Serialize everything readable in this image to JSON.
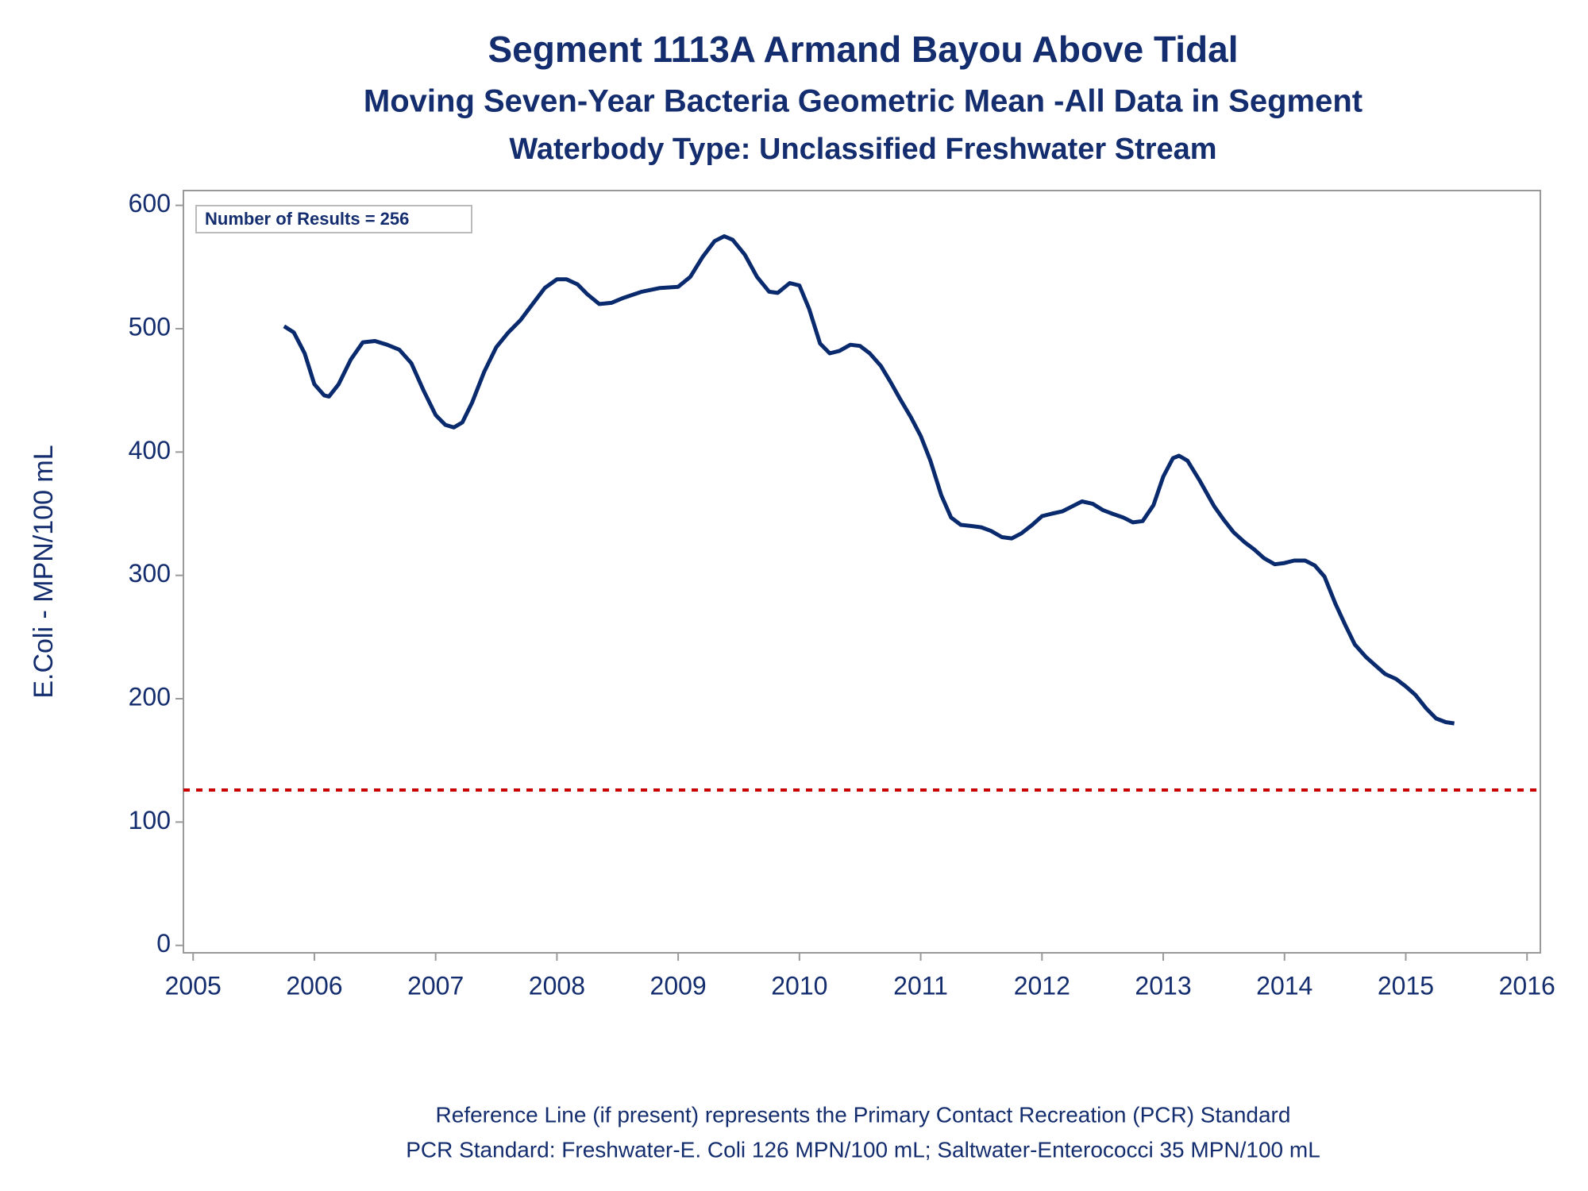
{
  "chart_data": {
    "type": "line",
    "title": "Segment 1113A   Armand Bayou Above Tidal",
    "subtitle": "Moving Seven-Year Bacteria Geometric Mean -All Data in Segment",
    "subtitle2": "Waterbody Type: Unclassified Freshwater Stream",
    "y_label": "E.Coli - MPN/100 mL",
    "annotation": "Number of Results = 256",
    "footnotes": [
      "Reference Line (if present) represents the Primary Contact Recreation (PCR) Standard",
      "PCR Standard: Freshwater-E. Coli 126 MPN/100 mL; Saltwater-Enterococci 35 MPN/100 mL"
    ],
    "x": [
      2005.75,
      2005.83,
      2005.92,
      2006.0,
      2006.08,
      2006.12,
      2006.2,
      2006.3,
      2006.4,
      2006.5,
      2006.6,
      2006.7,
      2006.8,
      2006.9,
      2007.0,
      2007.08,
      2007.15,
      2007.22,
      2007.3,
      2007.4,
      2007.5,
      2007.6,
      2007.7,
      2007.8,
      2007.9,
      2008.0,
      2008.08,
      2008.17,
      2008.25,
      2008.35,
      2008.45,
      2008.55,
      2008.7,
      2008.85,
      2009.0,
      2009.1,
      2009.2,
      2009.3,
      2009.38,
      2009.45,
      2009.55,
      2009.65,
      2009.75,
      2009.82,
      2009.92,
      2010.0,
      2010.08,
      2010.17,
      2010.25,
      2010.33,
      2010.42,
      2010.5,
      2010.58,
      2010.67,
      2010.75,
      2010.83,
      2010.92,
      2011.0,
      2011.08,
      2011.17,
      2011.25,
      2011.33,
      2011.42,
      2011.5,
      2011.58,
      2011.67,
      2011.75,
      2011.83,
      2011.92,
      2012.0,
      2012.08,
      2012.17,
      2012.25,
      2012.33,
      2012.42,
      2012.5,
      2012.58,
      2012.67,
      2012.75,
      2012.83,
      2012.92,
      2013.0,
      2013.08,
      2013.13,
      2013.2,
      2013.3,
      2013.42,
      2013.5,
      2013.58,
      2013.67,
      2013.75,
      2013.83,
      2013.92,
      2014.0,
      2014.08,
      2014.17,
      2014.25,
      2014.33,
      2014.42,
      2014.5,
      2014.58,
      2014.67,
      2014.75,
      2014.83,
      2014.92,
      2015.0,
      2015.08,
      2015.17,
      2015.25,
      2015.33,
      2015.4
    ],
    "series": [
      {
        "name": "Geometric Mean",
        "color": "#0a2a6e",
        "values": [
          502,
          497,
          480,
          455,
          446,
          445,
          455,
          475,
          489,
          490,
          487,
          483,
          472,
          450,
          430,
          422,
          420,
          424,
          440,
          465,
          485,
          497,
          507,
          520,
          533,
          540,
          540,
          536,
          528,
          520,
          521,
          525,
          530,
          533,
          534,
          542,
          558,
          571,
          575,
          572,
          560,
          542,
          530,
          529,
          537,
          535,
          516,
          488,
          480,
          482,
          487,
          486,
          480,
          470,
          457,
          443,
          428,
          413,
          393,
          365,
          347,
          341,
          340,
          339,
          336,
          331,
          330,
          334,
          341,
          348,
          350,
          352,
          356,
          360,
          358,
          353,
          350,
          347,
          343,
          344,
          357,
          380,
          395,
          397,
          393,
          377,
          356,
          345,
          335,
          327,
          321,
          314,
          309,
          310,
          312,
          312,
          308,
          299,
          277,
          260,
          244,
          234,
          227,
          220,
          216,
          210,
          203,
          192,
          184,
          181,
          180
        ]
      }
    ],
    "reference_line": {
      "value": 126,
      "color": "#cc0000"
    },
    "xlim": [
      2004.92,
      2016.11
    ],
    "xticks": [
      2005,
      2006,
      2007,
      2008,
      2009,
      2010,
      2011,
      2012,
      2013,
      2014,
      2015,
      2016
    ],
    "ylim": [
      -6,
      612
    ],
    "yticks": [
      0,
      100,
      200,
      300,
      400,
      500,
      600
    ]
  }
}
